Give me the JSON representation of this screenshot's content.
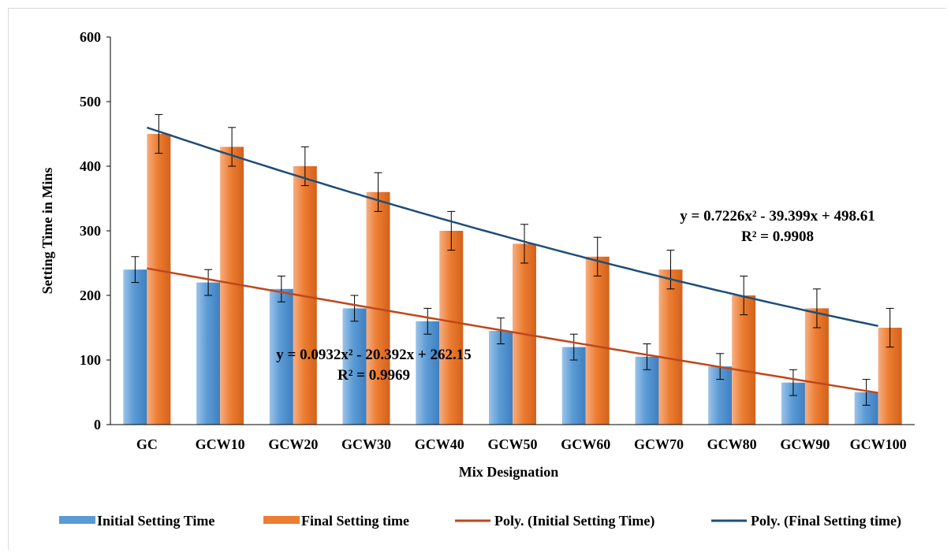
{
  "chart_data": {
    "type": "bar",
    "categories": [
      "GC",
      "GCW10",
      "GCW20",
      "GCW30",
      "GCW40",
      "GCW50",
      "GCW60",
      "GCW70",
      "GCW80",
      "GCW90",
      "GCW100"
    ],
    "series": [
      {
        "name": "Initial Setting Time",
        "values": [
          240,
          220,
          210,
          180,
          160,
          145,
          120,
          105,
          90,
          65,
          50
        ],
        "error": 20,
        "color": "#5b9bd5"
      },
      {
        "name": "Final Setting time",
        "values": [
          450,
          430,
          400,
          360,
          300,
          280,
          260,
          240,
          200,
          180,
          150
        ],
        "error": 30,
        "color": "#ed7d31"
      }
    ],
    "trendlines": [
      {
        "name": "Poly. (Initial Setting Time)",
        "coefficients": [
          0.0932,
          -20.392,
          262.15
        ],
        "equation": "y = 0.0932x² - 20.392x + 262.15",
        "r2": "R² = 0.9969",
        "color": "#c0461b"
      },
      {
        "name": "Poly. (Final Setting time)",
        "coefficients": [
          0.7226,
          -39.399,
          498.61
        ],
        "equation": "y = 0.7226x² - 39.399x + 498.61",
        "r2": "R² = 0.9908",
        "color": "#1f4e79"
      }
    ],
    "xlabel": "Mix Designation",
    "ylabel": "Setting Time in Mins",
    "ylim": [
      0,
      600
    ],
    "yticks": [
      0,
      100,
      200,
      300,
      400,
      500,
      600
    ],
    "grid": false,
    "legend_position": "bottom"
  }
}
